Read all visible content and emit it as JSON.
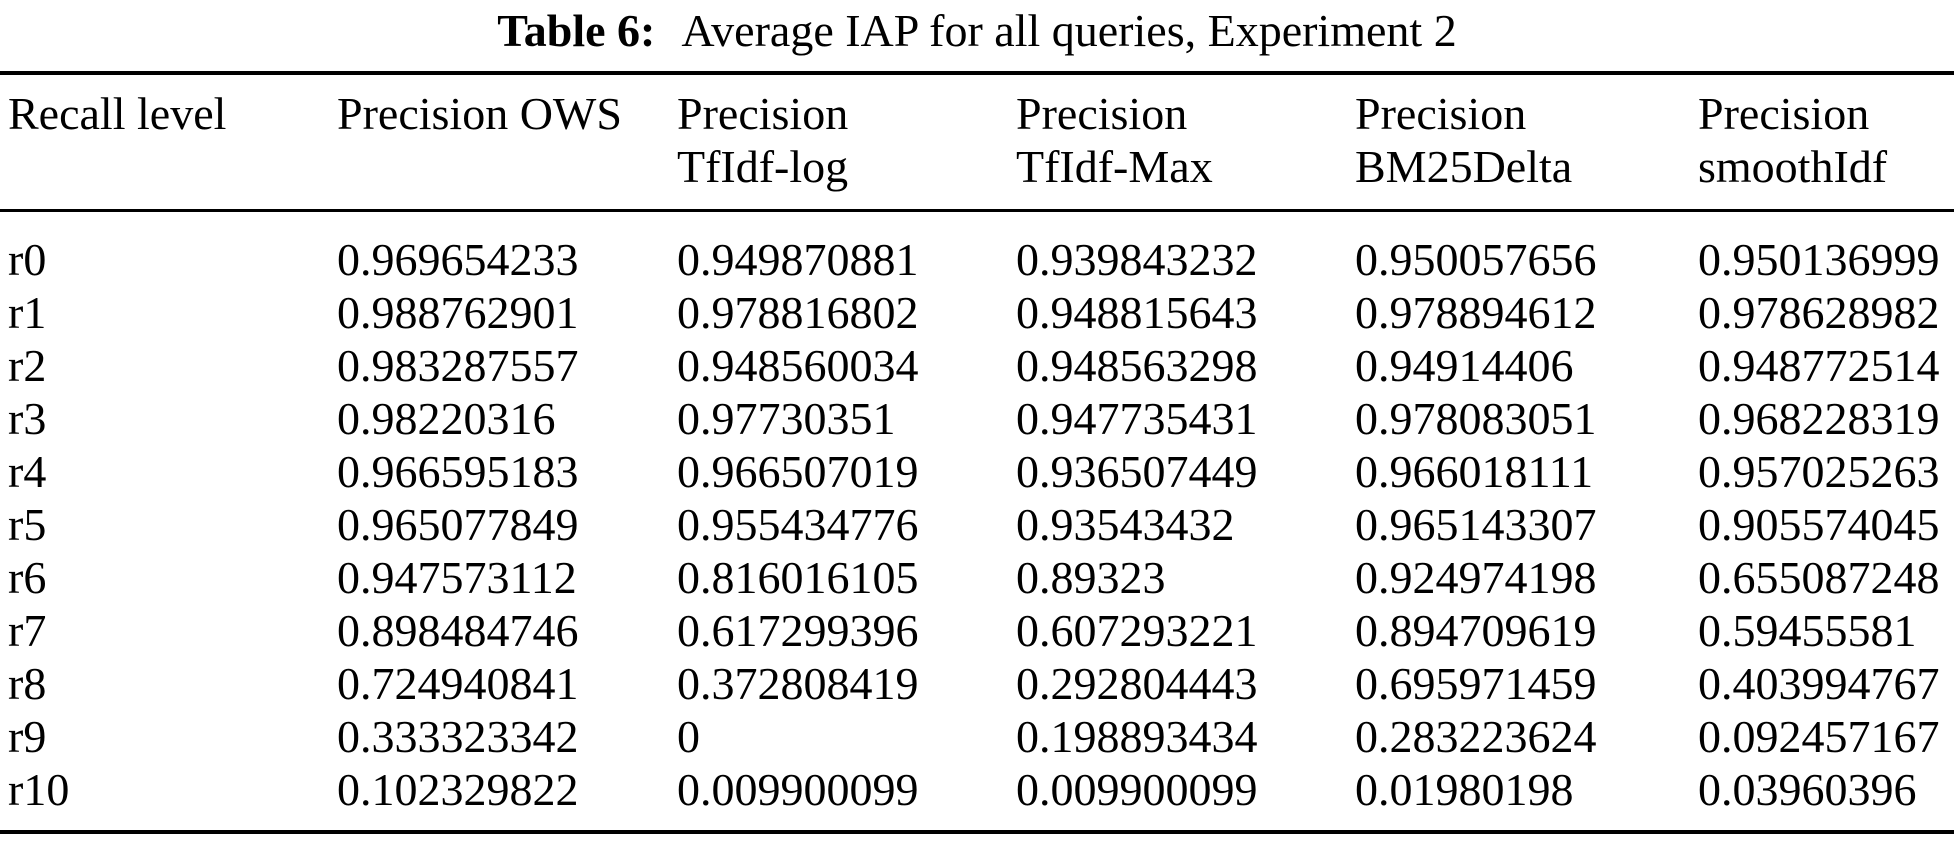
{
  "colors": {
    "background": "#ffffff",
    "text": "#000000",
    "rule": "#000000"
  },
  "caption": {
    "label": "Table 6:",
    "text": "Average IAP for all queries, Experiment 2"
  },
  "table": {
    "columns": [
      {
        "line1": "Recall level",
        "line2": ""
      },
      {
        "line1": "Precision OWS",
        "line2": ""
      },
      {
        "line1": "Precision",
        "line2": "TfIdf-log"
      },
      {
        "line1": "Precision",
        "line2": "TfIdf-Max"
      },
      {
        "line1": "Precision",
        "line2": "BM25Delta"
      },
      {
        "line1": "Precision",
        "line2": "smoothIdf"
      }
    ],
    "rows": [
      [
        "r0",
        "0.969654233",
        "0.949870881",
        "0.939843232",
        "0.950057656",
        "0.950136999"
      ],
      [
        "r1",
        "0.988762901",
        "0.978816802",
        "0.948815643",
        "0.978894612",
        "0.978628982"
      ],
      [
        "r2",
        "0.983287557",
        "0.948560034",
        "0.948563298",
        "0.94914406",
        "0.948772514"
      ],
      [
        "r3",
        "0.98220316",
        "0.97730351",
        "0.947735431",
        "0.978083051",
        "0.968228319"
      ],
      [
        "r4",
        "0.966595183",
        "0.966507019",
        "0.936507449",
        "0.966018111",
        "0.957025263"
      ],
      [
        "r5",
        "0.965077849",
        "0.955434776",
        "0.93543432",
        "0.965143307",
        "0.905574045"
      ],
      [
        "r6",
        "0.947573112",
        "0.816016105",
        "0.89323",
        "0.924974198",
        "0.655087248"
      ],
      [
        "r7",
        "0.898484746",
        "0.617299396",
        "0.607293221",
        "0.894709619",
        "0.59455581"
      ],
      [
        "r8",
        "0.724940841",
        "0.372808419",
        "0.292804443",
        "0.695971459",
        "0.403994767"
      ],
      [
        "r9",
        "0.333323342",
        "0",
        "0.198893434",
        "0.283223624",
        "0.092457167"
      ],
      [
        "r10",
        "0.102329822",
        "0.009900099",
        "0.009900099",
        "0.01980198",
        "0.03960396"
      ]
    ]
  },
  "chart_data": {
    "type": "table",
    "title": "Table 6: Average IAP for all queries, Experiment 2",
    "categories": [
      "r0",
      "r1",
      "r2",
      "r3",
      "r4",
      "r5",
      "r6",
      "r7",
      "r8",
      "r9",
      "r10"
    ],
    "series": [
      {
        "name": "Precision OWS",
        "values": [
          0.969654233,
          0.988762901,
          0.983287557,
          0.98220316,
          0.966595183,
          0.965077849,
          0.947573112,
          0.898484746,
          0.724940841,
          0.333323342,
          0.102329822
        ]
      },
      {
        "name": "Precision TfIdf-log",
        "values": [
          0.949870881,
          0.978816802,
          0.948560034,
          0.97730351,
          0.966507019,
          0.955434776,
          0.816016105,
          0.617299396,
          0.372808419,
          0,
          0.009900099
        ]
      },
      {
        "name": "Precision TfIdf-Max",
        "values": [
          0.939843232,
          0.948815643,
          0.948563298,
          0.947735431,
          0.936507449,
          0.93543432,
          0.89323,
          0.607293221,
          0.292804443,
          0.198893434,
          0.009900099
        ]
      },
      {
        "name": "Precision BM25Delta",
        "values": [
          0.950057656,
          0.978894612,
          0.94914406,
          0.978083051,
          0.966018111,
          0.965143307,
          0.924974198,
          0.894709619,
          0.695971459,
          0.283223624,
          0.01980198
        ]
      },
      {
        "name": "Precision smoothIdf",
        "values": [
          0.950136999,
          0.978628982,
          0.948772514,
          0.968228319,
          0.957025263,
          0.905574045,
          0.655087248,
          0.59455581,
          0.403994767,
          0.092457167,
          0.03960396
        ]
      }
    ],
    "xlabel": "Recall level",
    "ylabel": "Precision"
  }
}
